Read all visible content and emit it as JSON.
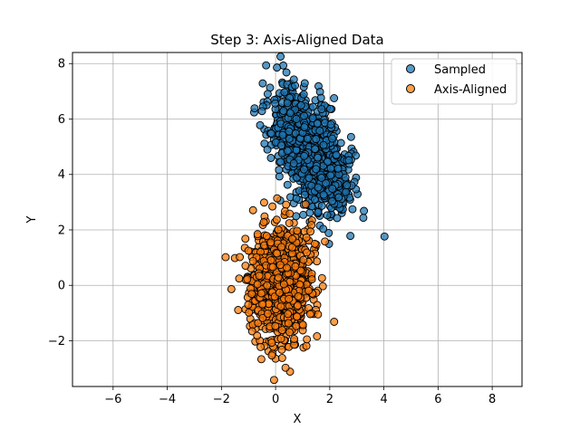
{
  "chart_data": {
    "type": "scatter",
    "title": "Step 3: Axis-Aligned Data",
    "xlabel": "X",
    "ylabel": "Y",
    "xlim": [
      -7.5,
      9.1
    ],
    "ylim": [
      -3.65,
      8.4
    ],
    "xticks": [
      -6,
      -4,
      -2,
      0,
      2,
      4,
      6,
      8
    ],
    "yticks": [
      -2,
      0,
      2,
      4,
      6,
      8
    ],
    "xtick_labels": [
      "−6",
      "−4",
      "−2",
      "0",
      "2",
      "4",
      "6",
      "8"
    ],
    "ytick_labels": [
      "−2",
      "0",
      "2",
      "4",
      "6",
      "8"
    ],
    "grid": true,
    "legend_position": "top-right",
    "series": [
      {
        "name": "Sampled",
        "color": "#1f77b4",
        "distribution": {
          "type": "gaussian",
          "count": 1000,
          "mean": [
            1.3,
            4.8
          ],
          "cov": [
            [
              0.45,
              -0.38
            ],
            [
              -0.38,
              1.1
            ]
          ]
        }
      },
      {
        "name": "Axis-Aligned",
        "color": "#ff7f0e",
        "distribution": {
          "type": "gaussian",
          "count": 1000,
          "mean": [
            0.2,
            0.0
          ],
          "cov": [
            [
              0.32,
              0.0
            ],
            [
              0.0,
              1.05
            ]
          ]
        }
      }
    ]
  }
}
